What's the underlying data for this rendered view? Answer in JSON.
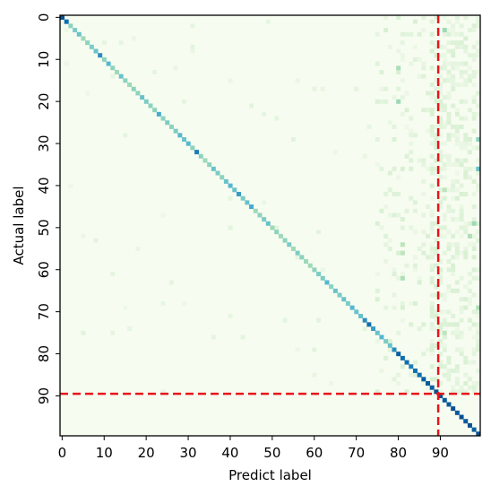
{
  "chart_data": {
    "type": "heatmap",
    "title": "",
    "xlabel": "Predict label",
    "ylabel": "Actual label",
    "n_classes": 100,
    "x_ticks": [
      0,
      10,
      20,
      30,
      40,
      50,
      60,
      70,
      80,
      90
    ],
    "y_ticks": [
      0,
      10,
      20,
      30,
      40,
      50,
      60,
      70,
      80,
      90
    ],
    "colormap": "GnBu",
    "colors": {
      "low": "#f7fcf0",
      "mid": "#7bccc4",
      "high": "#084081",
      "threshold_line": "#e8141a"
    },
    "threshold_lines": {
      "x": 89.5,
      "y": 89.5,
      "style": "dashed"
    },
    "diagonal": {
      "description_values": "per-class diagonal intensity 0-1, classes 0..99",
      "values": [
        0.95,
        0.85,
        0.45,
        0.5,
        0.55,
        0.4,
        0.45,
        0.5,
        0.55,
        0.75,
        0.45,
        0.6,
        0.45,
        0.4,
        0.55,
        0.45,
        0.4,
        0.45,
        0.45,
        0.55,
        0.5,
        0.45,
        0.45,
        0.65,
        0.45,
        0.5,
        0.45,
        0.5,
        0.6,
        0.55,
        0.6,
        0.45,
        0.8,
        0.45,
        0.4,
        0.45,
        0.55,
        0.5,
        0.45,
        0.55,
        0.6,
        0.55,
        0.7,
        0.5,
        0.55,
        0.65,
        0.4,
        0.45,
        0.5,
        0.55,
        0.4,
        0.45,
        0.4,
        0.45,
        0.5,
        0.4,
        0.5,
        0.45,
        0.4,
        0.4,
        0.45,
        0.5,
        0.5,
        0.6,
        0.45,
        0.55,
        0.5,
        0.55,
        0.5,
        0.6,
        0.55,
        0.55,
        0.75,
        0.85,
        0.7,
        0.55,
        0.6,
        0.5,
        0.55,
        0.75,
        0.9,
        0.85,
        0.85,
        0.8,
        0.85,
        0.85,
        0.9,
        0.92,
        0.9,
        0.95,
        0.95,
        0.92,
        0.92,
        0.95,
        0.92,
        0.95,
        0.92,
        0.95,
        0.9,
        0.95
      ]
    },
    "offdiag_highlights": [
      {
        "row": 3,
        "col": 91,
        "value": 0.4
      },
      {
        "row": 12,
        "col": 80,
        "value": 0.35
      },
      {
        "row": 20,
        "col": 80,
        "value": 0.4
      },
      {
        "row": 29,
        "col": 99,
        "value": 0.45
      },
      {
        "row": 36,
        "col": 99,
        "value": 0.55
      },
      {
        "row": 41,
        "col": 91,
        "value": 0.3
      },
      {
        "row": 49,
        "col": 98,
        "value": 0.4
      },
      {
        "row": 52,
        "col": 97,
        "value": 0.35
      },
      {
        "row": 54,
        "col": 81,
        "value": 0.3
      },
      {
        "row": 56,
        "col": 81,
        "value": 0.3
      },
      {
        "row": 62,
        "col": 81,
        "value": 0.35
      },
      {
        "row": 69,
        "col": 99,
        "value": 0.35
      },
      {
        "row": 75,
        "col": 91,
        "value": 0.3
      }
    ],
    "scatter_noise_region": {
      "cols": [
        75,
        99
      ],
      "rows": [
        0,
        89
      ]
    }
  }
}
